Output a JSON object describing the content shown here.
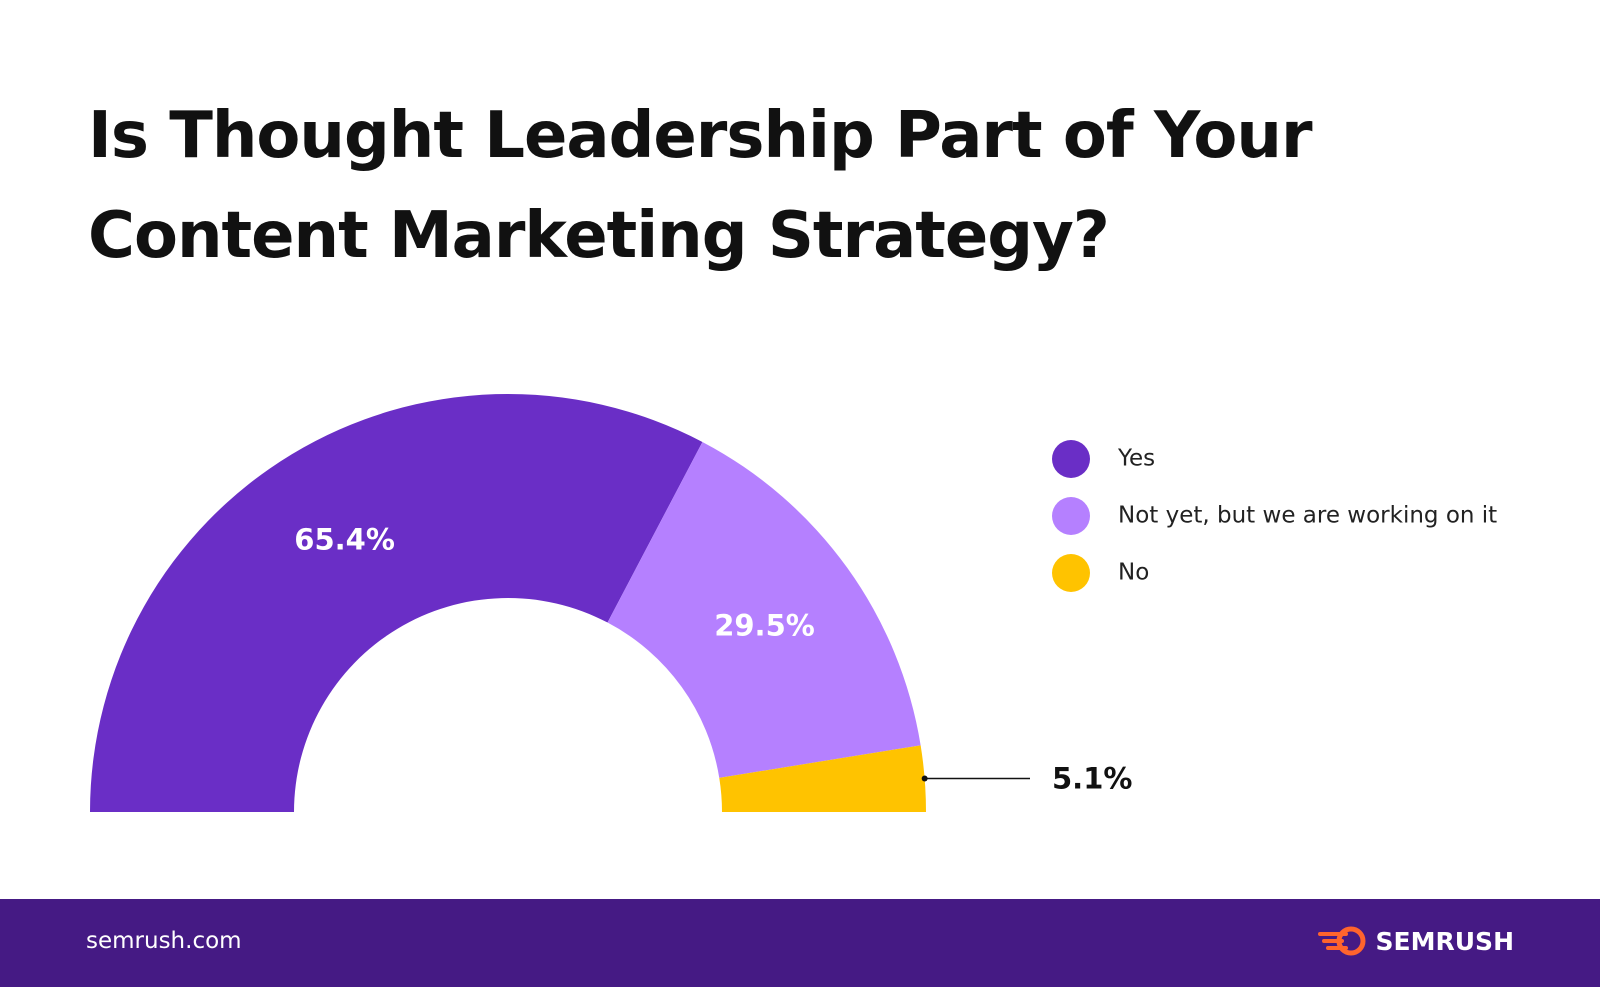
{
  "chart_data": {
    "type": "half-donut",
    "title": [
      "Is Thought Leadership Part of Your",
      "Content Marketing Strategy?"
    ],
    "categories": [
      "Yes",
      "Not yet, but we are working on it",
      "No"
    ],
    "values": [
      65.4,
      29.5,
      5.1
    ],
    "value_labels": [
      "65.4%",
      "29.5%",
      "5.1%"
    ],
    "colors": [
      "#6a2ec6",
      "#b580ff",
      "#ffc300"
    ]
  },
  "footer": {
    "source": "semrush.com",
    "brand": "SEMRUSH"
  }
}
